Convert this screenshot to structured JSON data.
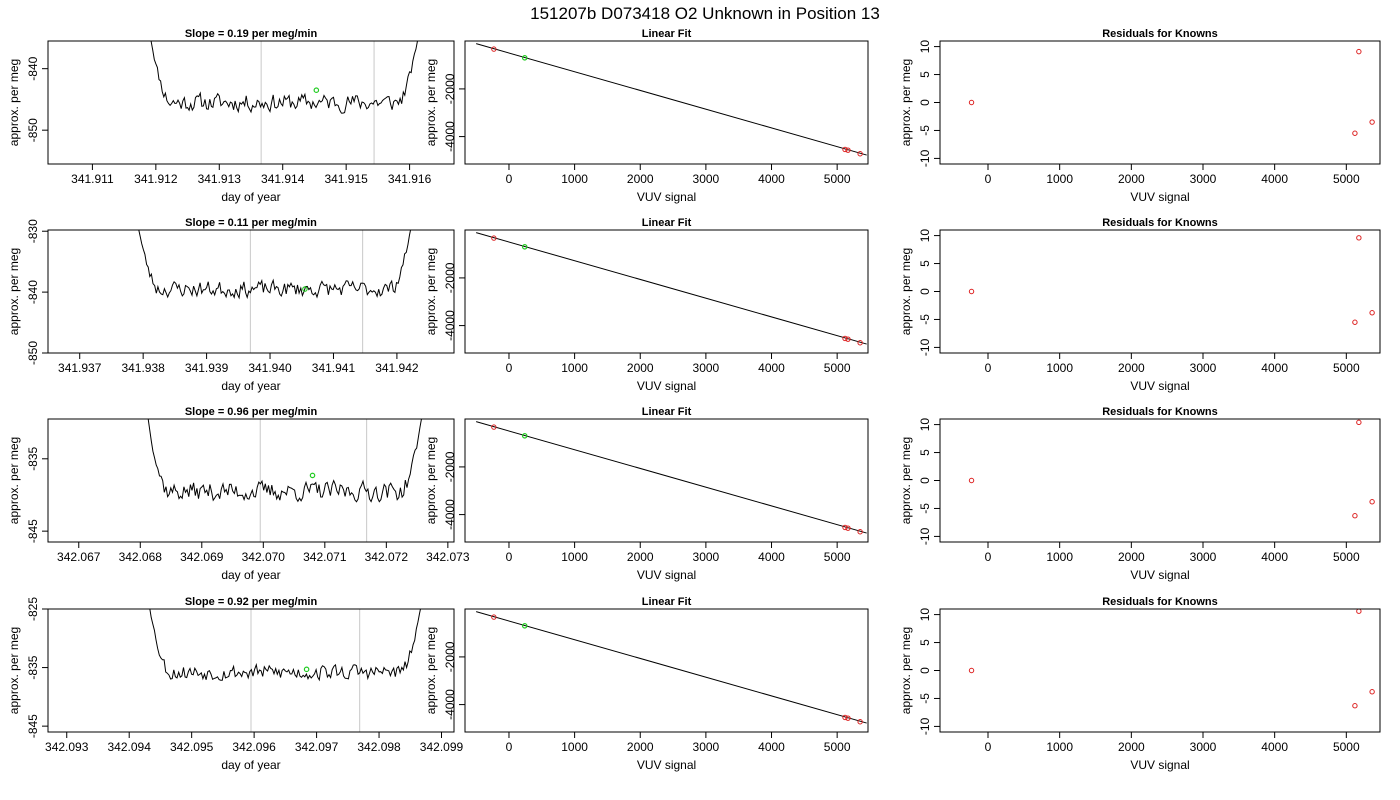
{
  "figure": {
    "title": "151207b      D073418   O2 Unknown in Position  13"
  },
  "chart_data": [
    {
      "type": "line",
      "row": 0,
      "col": 0,
      "title": "Slope =  0.19  per meg/min",
      "xlabel": "day of year",
      "ylabel": "approx. per meg",
      "xlim": [
        341.9103,
        341.9167
      ],
      "ylim": [
        -855.5,
        -835.5
      ],
      "xticks": [
        341.911,
        341.912,
        341.913,
        341.914,
        341.915,
        341.916
      ],
      "xtick_labels": [
        "341.911",
        "341.912",
        "341.913",
        "341.914",
        "341.915",
        "341.916"
      ],
      "yticks": [
        -840,
        -850
      ],
      "ytick_labels": [
        "-840",
        "-850"
      ],
      "vlines": [
        341.91366,
        341.91544
      ],
      "trace": {
        "x_start": 341.9119,
        "x_end": 341.91615,
        "level": -845.5,
        "noise": 1.6,
        "edge_top": -834,
        "seed": 11
      },
      "marker": {
        "x": 341.91453,
        "y": -843.5,
        "color": "#22cc22"
      }
    },
    {
      "type": "scatter",
      "row": 0,
      "col": 1,
      "title": "Linear Fit",
      "xlabel": "VUV signal",
      "ylabel": "approx. per meg",
      "xlim": [
        -670,
        5470
      ],
      "ylim": [
        -5150,
        10
      ],
      "xticks": [
        0,
        1000,
        2000,
        3000,
        4000,
        5000
      ],
      "xtick_labels": [
        "0",
        "1000",
        "2000",
        "3000",
        "4000",
        "5000"
      ],
      "yticks": [
        -2000,
        -4000
      ],
      "ytick_labels": [
        "-2000",
        "-4000"
      ],
      "fit_line": {
        "x": [
          -500,
          5450
        ],
        "y": [
          -100,
          -4775
        ]
      },
      "points_known": [
        {
          "x": -230,
          "y": -330
        },
        {
          "x": 5120,
          "y": -4540
        },
        {
          "x": 5165,
          "y": -4570
        },
        {
          "x": 5350,
          "y": -4720
        }
      ],
      "points_unknown": [
        {
          "x": 240,
          "y": -695
        }
      ]
    },
    {
      "type": "scatter",
      "row": 0,
      "col": 2,
      "title": "Residuals for Knowns",
      "xlabel": "VUV signal",
      "ylabel": "approx. per meg",
      "xlim": [
        -670,
        5470
      ],
      "ylim": [
        -11,
        11
      ],
      "xticks": [
        0,
        1000,
        2000,
        3000,
        4000,
        5000
      ],
      "xtick_labels": [
        "0",
        "1000",
        "2000",
        "3000",
        "4000",
        "5000"
      ],
      "yticks": [
        10,
        5,
        0,
        -5,
        -10
      ],
      "ytick_labels": [
        "10",
        "5",
        "0",
        "-5",
        "-10"
      ],
      "points": [
        {
          "x": -230,
          "y": 0
        },
        {
          "x": 5120,
          "y": -5.5
        },
        {
          "x": 5175,
          "y": 9.1
        },
        {
          "x": 5360,
          "y": -3.5
        }
      ]
    },
    {
      "type": "line",
      "row": 1,
      "col": 0,
      "title": "Slope =  0.11  per meg/min",
      "xlabel": "day of year",
      "ylabel": "approx. per meg",
      "xlim": [
        341.9365,
        341.9429
      ],
      "ylim": [
        -850,
        -829.8
      ],
      "xticks": [
        341.937,
        341.938,
        341.939,
        341.94,
        341.941,
        341.942
      ],
      "xtick_labels": [
        "341.937",
        "341.938",
        "341.939",
        "341.940",
        "341.941",
        "341.942"
      ],
      "yticks": [
        -830,
        -840,
        -850
      ],
      "ytick_labels": [
        "-830",
        "-840",
        "-850"
      ],
      "vlines": [
        341.93969,
        341.94146
      ],
      "trace": {
        "x_start": 341.9379,
        "x_end": 341.94225,
        "level": -839.5,
        "noise": 1.5,
        "edge_top": -828,
        "seed": 23
      },
      "marker": {
        "x": 341.94055,
        "y": -839.5,
        "color": "#22cc22"
      }
    },
    {
      "type": "scatter",
      "row": 1,
      "col": 1,
      "title": "Linear Fit",
      "xlabel": "VUV signal",
      "ylabel": "approx. per meg",
      "xlim": [
        -670,
        5470
      ],
      "ylim": [
        -5150,
        10
      ],
      "xticks": [
        0,
        1000,
        2000,
        3000,
        4000,
        5000
      ],
      "xtick_labels": [
        "0",
        "1000",
        "2000",
        "3000",
        "4000",
        "5000"
      ],
      "yticks": [
        -2000,
        -4000
      ],
      "ytick_labels": [
        "-2000",
        "-4000"
      ],
      "fit_line": {
        "x": [
          -500,
          5450
        ],
        "y": [
          -100,
          -4775
        ]
      },
      "points_known": [
        {
          "x": -230,
          "y": -330
        },
        {
          "x": 5120,
          "y": -4540
        },
        {
          "x": 5165,
          "y": -4570
        },
        {
          "x": 5350,
          "y": -4720
        }
      ],
      "points_unknown": [
        {
          "x": 240,
          "y": -695
        }
      ]
    },
    {
      "type": "scatter",
      "row": 1,
      "col": 2,
      "title": "Residuals for Knowns",
      "xlabel": "VUV signal",
      "ylabel": "approx. per meg",
      "xlim": [
        -670,
        5470
      ],
      "ylim": [
        -11,
        11
      ],
      "xticks": [
        0,
        1000,
        2000,
        3000,
        4000,
        5000
      ],
      "xtick_labels": [
        "0",
        "1000",
        "2000",
        "3000",
        "4000",
        "5000"
      ],
      "yticks": [
        10,
        5,
        0,
        -5,
        -10
      ],
      "ytick_labels": [
        "10",
        "5",
        "0",
        "-5",
        "-10"
      ],
      "points": [
        {
          "x": -230,
          "y": 0
        },
        {
          "x": 5120,
          "y": -5.5
        },
        {
          "x": 5175,
          "y": 9.6
        },
        {
          "x": 5360,
          "y": -3.8
        }
      ]
    },
    {
      "type": "line",
      "row": 2,
      "col": 0,
      "title": "Slope =  0.96  per meg/min",
      "xlabel": "day of year",
      "ylabel": "approx. per meg",
      "xlim": [
        342.0665,
        342.0731
      ],
      "ylim": [
        -846.5,
        -829.5
      ],
      "xticks": [
        342.067,
        342.068,
        342.069,
        342.07,
        342.071,
        342.072,
        342.073
      ],
      "xtick_labels": [
        "342.067",
        "342.068",
        "342.069",
        "342.070",
        "342.071",
        "342.072",
        "342.073"
      ],
      "yticks": [
        -835,
        -845
      ],
      "ytick_labels": [
        "-835",
        "-845"
      ],
      "vlines": [
        342.06995,
        342.07168
      ],
      "trace": {
        "x_start": 342.0681,
        "x_end": 342.0726,
        "level": -839.5,
        "noise": 1.5,
        "edge_top": -828,
        "seed": 37
      },
      "marker": {
        "x": 342.0708,
        "y": -837.3,
        "color": "#22cc22"
      }
    },
    {
      "type": "scatter",
      "row": 2,
      "col": 1,
      "title": "Linear Fit",
      "xlabel": "VUV signal",
      "ylabel": "approx. per meg",
      "xlim": [
        -670,
        5470
      ],
      "ylim": [
        -5150,
        10
      ],
      "xticks": [
        0,
        1000,
        2000,
        3000,
        4000,
        5000
      ],
      "xtick_labels": [
        "0",
        "1000",
        "2000",
        "3000",
        "4000",
        "5000"
      ],
      "yticks": [
        -2000,
        -4000
      ],
      "ytick_labels": [
        "-2000",
        "-4000"
      ],
      "fit_line": {
        "x": [
          -500,
          5450
        ],
        "y": [
          -100,
          -4775
        ]
      },
      "points_known": [
        {
          "x": -230,
          "y": -330
        },
        {
          "x": 5120,
          "y": -4540
        },
        {
          "x": 5165,
          "y": -4570
        },
        {
          "x": 5350,
          "y": -4720
        }
      ],
      "points_unknown": [
        {
          "x": 240,
          "y": -695
        }
      ]
    },
    {
      "type": "scatter",
      "row": 2,
      "col": 2,
      "title": "Residuals for Knowns",
      "xlabel": "VUV signal",
      "ylabel": "approx. per meg",
      "xlim": [
        -670,
        5470
      ],
      "ylim": [
        -11,
        11
      ],
      "xticks": [
        0,
        1000,
        2000,
        3000,
        4000,
        5000
      ],
      "xtick_labels": [
        "0",
        "1000",
        "2000",
        "3000",
        "4000",
        "5000"
      ],
      "yticks": [
        10,
        5,
        0,
        -5,
        -10
      ],
      "ytick_labels": [
        "10",
        "5",
        "0",
        "-5",
        "-10"
      ],
      "points": [
        {
          "x": -230,
          "y": 0
        },
        {
          "x": 5120,
          "y": -6.3
        },
        {
          "x": 5175,
          "y": 10.4
        },
        {
          "x": 5360,
          "y": -3.8
        }
      ]
    },
    {
      "type": "line",
      "row": 3,
      "col": 0,
      "title": "Slope =  0.92  per meg/min",
      "xlabel": "day of year",
      "ylabel": "approx. per meg",
      "xlim": [
        342.0927,
        342.0992
      ],
      "ylim": [
        -846,
        -825
      ],
      "xticks": [
        342.093,
        342.094,
        342.095,
        342.096,
        342.097,
        342.098,
        342.099
      ],
      "xtick_labels": [
        "342.093",
        "342.094",
        "342.095",
        "342.096",
        "342.097",
        "342.098",
        "342.099"
      ],
      "yticks": [
        -825,
        -835,
        -845
      ],
      "ytick_labels": [
        "-825",
        "-835",
        "-845"
      ],
      "vlines": [
        342.09595,
        342.09769
      ],
      "trace": {
        "x_start": 342.0943,
        "x_end": 342.0987,
        "level": -835.8,
        "noise": 1.5,
        "edge_top": -823,
        "seed": 53
      },
      "marker": {
        "x": 342.09684,
        "y": -835.3,
        "color": "#22cc22"
      }
    },
    {
      "type": "scatter",
      "row": 3,
      "col": 1,
      "title": "Linear Fit",
      "xlabel": "VUV signal",
      "ylabel": "approx. per meg",
      "xlim": [
        -670,
        5470
      ],
      "ylim": [
        -5150,
        10
      ],
      "xticks": [
        0,
        1000,
        2000,
        3000,
        4000,
        5000
      ],
      "xtick_labels": [
        "0",
        "1000",
        "2000",
        "3000",
        "4000",
        "5000"
      ],
      "yticks": [
        -2000,
        -4000
      ],
      "ytick_labels": [
        "-2000",
        "-4000"
      ],
      "fit_line": {
        "x": [
          -500,
          5450
        ],
        "y": [
          -100,
          -4775
        ]
      },
      "points_known": [
        {
          "x": -230,
          "y": -330
        },
        {
          "x": 5120,
          "y": -4540
        },
        {
          "x": 5165,
          "y": -4570
        },
        {
          "x": 5350,
          "y": -4720
        }
      ],
      "points_unknown": [
        {
          "x": 240,
          "y": -695
        }
      ]
    },
    {
      "type": "scatter",
      "row": 3,
      "col": 2,
      "title": "Residuals for Knowns",
      "xlabel": "VUV signal",
      "ylabel": "approx. per meg",
      "xlim": [
        -670,
        5470
      ],
      "ylim": [
        -11,
        11
      ],
      "xticks": [
        0,
        1000,
        2000,
        3000,
        4000,
        5000
      ],
      "xtick_labels": [
        "0",
        "1000",
        "2000",
        "3000",
        "4000",
        "5000"
      ],
      "yticks": [
        10,
        5,
        0,
        -5,
        -10
      ],
      "ytick_labels": [
        "10",
        "5",
        "0",
        "-5",
        "-10"
      ],
      "points": [
        {
          "x": -230,
          "y": 0
        },
        {
          "x": 5120,
          "y": -6.3
        },
        {
          "x": 5175,
          "y": 10.6
        },
        {
          "x": 5360,
          "y": -3.8
        }
      ]
    }
  ],
  "colors": {
    "axes": "#000000",
    "trace": "#000000",
    "vline": "#c8c8c8",
    "known_point": "#dd2222",
    "unknown_point": "#22cc22",
    "fit_line": "#000000"
  }
}
